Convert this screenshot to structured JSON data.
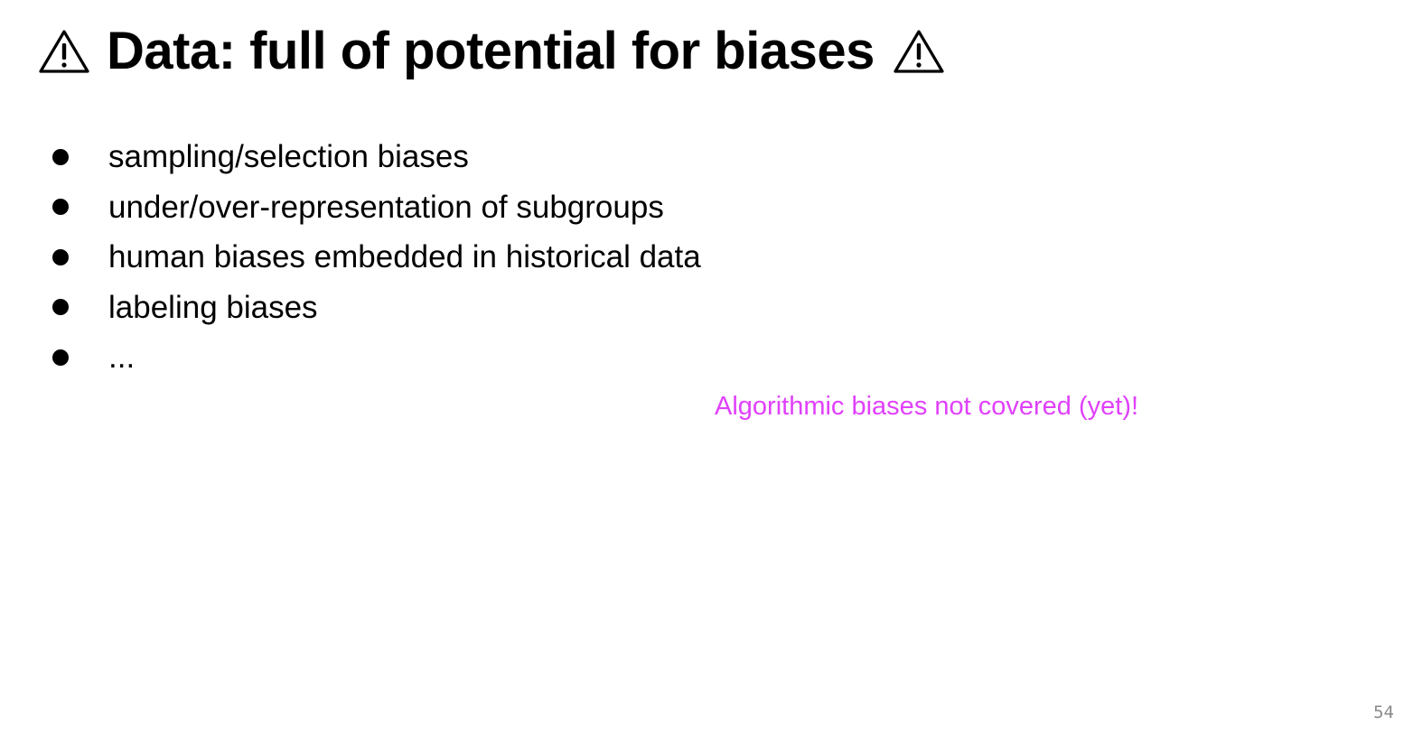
{
  "slide": {
    "title": "Data: full of potential for biases",
    "title_icon_left": "warning-icon",
    "title_icon_right": "warning-icon",
    "bullets": [
      "sampling/selection biases",
      "under/over-representation of subgroups",
      "human biases embedded in historical data",
      "labeling biases",
      "..."
    ],
    "note": "Algorithmic biases not covered (yet)!",
    "note_color": "#e040fb",
    "page_number": "54"
  }
}
